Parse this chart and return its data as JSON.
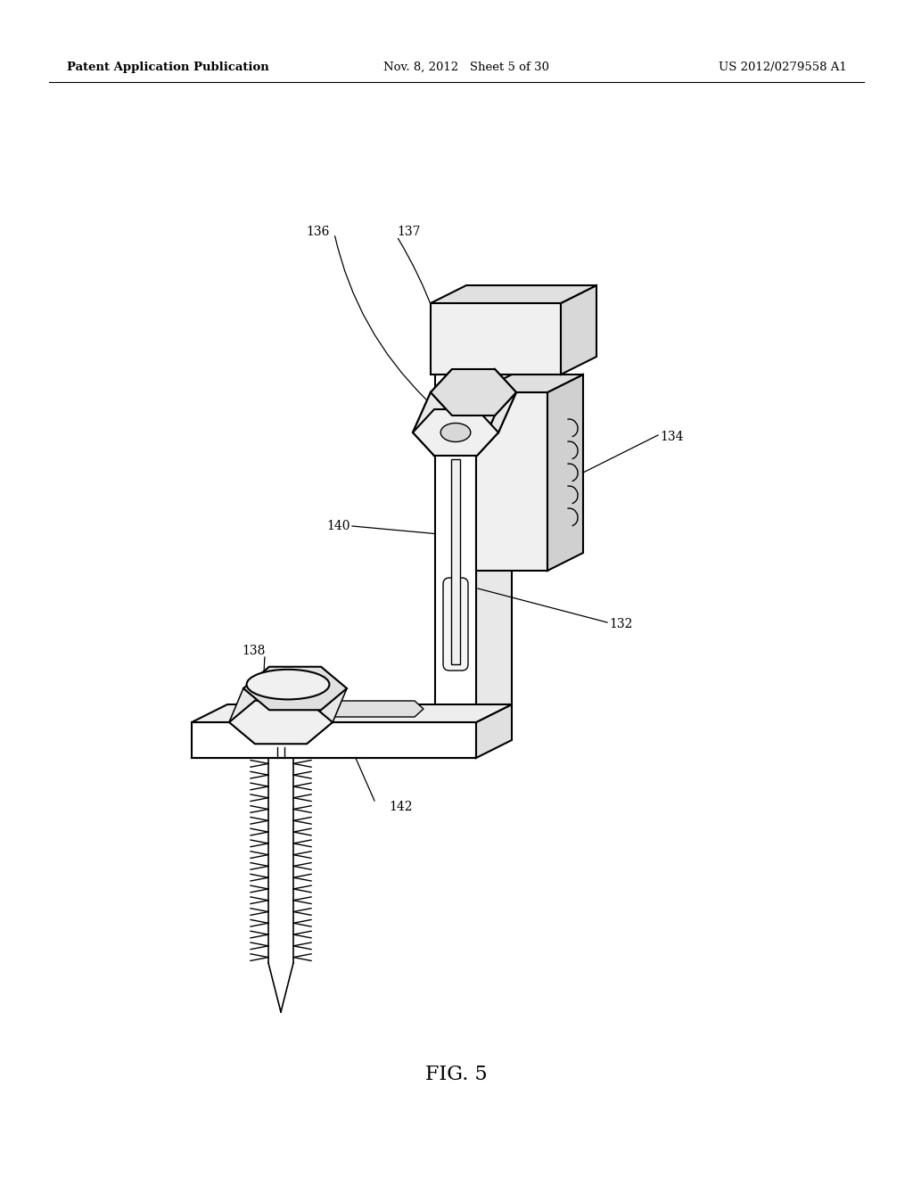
{
  "background_color": "#ffffff",
  "header_left": "Patent Application Publication",
  "header_mid": "Nov. 8, 2012   Sheet 5 of 30",
  "header_right": "US 2012/0279558 A1",
  "figure_label": "FIG. 5",
  "line_color": "#000000",
  "text_color": "#000000",
  "fill_white": "#ffffff",
  "fill_light": "#f0f0f0",
  "fill_mid": "#e0e0e0",
  "fill_dark": "#c8c8c8"
}
